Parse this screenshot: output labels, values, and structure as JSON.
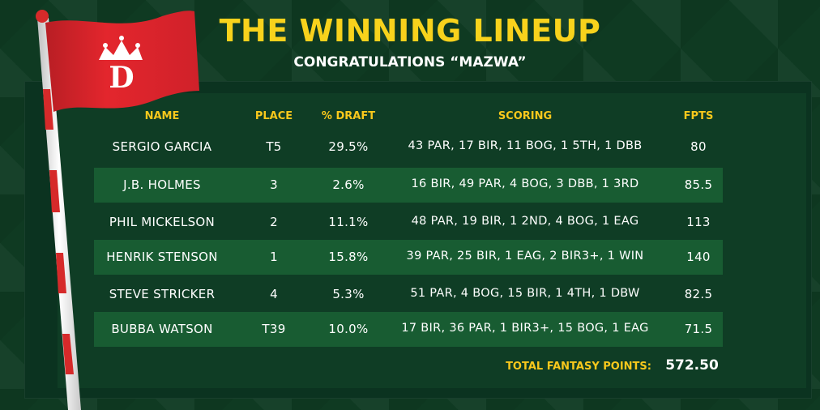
{
  "header": {
    "title": "THE WINNING LINEUP",
    "subtitle": "CONGRATULATIONS “MAZWA”"
  },
  "table": {
    "columns": [
      "NAME",
      "PLACE",
      "% DRAFT",
      "SCORING",
      "FPTS"
    ],
    "rows": [
      {
        "name": "SERGIO GARCIA",
        "place": "T5",
        "draft": "29.5%",
        "scoring": "43 PAR, 17 BIR, 11 BOG, 1 5TH, 1 DBB",
        "fpts": "80"
      },
      {
        "name": "J.B. HOLMES",
        "place": "3",
        "draft": "2.6%",
        "scoring": "16 BIR, 49 PAR, 4 BOG, 3 DBB, 1 3RD",
        "fpts": "85.5"
      },
      {
        "name": "PHIL MICKELSON",
        "place": "2",
        "draft": "11.1%",
        "scoring": "48 PAR, 19 BIR, 1 2ND, 4 BOG, 1 EAG",
        "fpts": "113"
      },
      {
        "name": "HENRIK STENSON",
        "place": "1",
        "draft": "15.8%",
        "scoring": "39 PAR, 25 BIR, 1 EAG, 2 BIR3+, 1 WIN",
        "fpts": "140"
      },
      {
        "name": "STEVE STRICKER",
        "place": "4",
        "draft": "5.3%",
        "scoring": "51 PAR, 4 BOG, 15 BIR, 1 4TH, 1 DBW",
        "fpts": "82.5"
      },
      {
        "name": "BUBBA WATSON",
        "place": "T39",
        "draft": "10.0%",
        "scoring": "17 BIR, 36 PAR, 1 BIR3+, 15 BOG, 1 EAG",
        "fpts": "71.5"
      }
    ],
    "total_label": "TOTAL FANTASY POINTS:",
    "total_value": "572.50"
  },
  "logo": {
    "letter": "D",
    "icon": "draftkings-crown-logo"
  },
  "colors": {
    "background": "#0f3a22",
    "title": "#f8d21c",
    "header_text": "#f8c81c",
    "flag": "#e0272e",
    "alt_row": "#185c32"
  }
}
